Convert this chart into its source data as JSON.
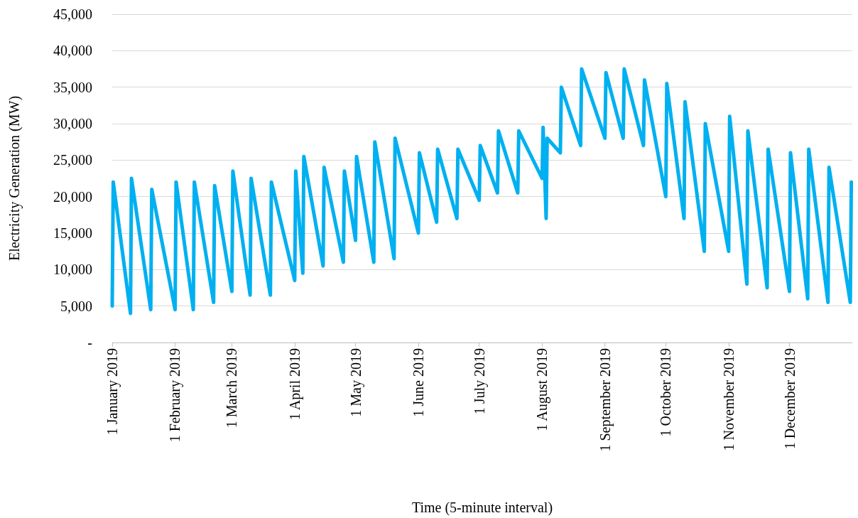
{
  "chart_data": {
    "type": "line",
    "xlabel": "Time (5-minute interval)",
    "ylabel": "Electricity Generation (MW)",
    "xlim": [
      "2019-01-01",
      "2019-12-31T23:55"
    ],
    "xticks": [
      {
        "value": "2019-01-01",
        "label": "1 January 2019"
      },
      {
        "value": "2019-02-01",
        "label": "1 February 2019"
      },
      {
        "value": "2019-03-01",
        "label": "1 March 2019"
      },
      {
        "value": "2019-04-01",
        "label": "1 April 2019"
      },
      {
        "value": "2019-05-01",
        "label": "1 May 2019"
      },
      {
        "value": "2019-06-01",
        "label": "1 June 2019"
      },
      {
        "value": "2019-07-01",
        "label": "1 July 2019"
      },
      {
        "value": "2019-08-01",
        "label": "1 August 2019"
      },
      {
        "value": "2019-09-01",
        "label": "1 September 2019"
      },
      {
        "value": "2019-10-01",
        "label": "1 October 2019"
      },
      {
        "value": "2019-11-01",
        "label": "1 November 2019"
      },
      {
        "value": "2019-12-01",
        "label": "1 December 2019"
      }
    ],
    "ylim": [
      0,
      45000
    ],
    "yticks": [
      {
        "value": 0,
        "label": "-"
      },
      {
        "value": 5000,
        "label": "5,000"
      },
      {
        "value": 10000,
        "label": "10,000"
      },
      {
        "value": 15000,
        "label": "15,000"
      },
      {
        "value": 20000,
        "label": "20,000"
      },
      {
        "value": 25000,
        "label": "25,000"
      },
      {
        "value": 30000,
        "label": "30,000"
      },
      {
        "value": 35000,
        "label": "35,000"
      },
      {
        "value": 40000,
        "label": "40,000"
      },
      {
        "value": 45000,
        "label": "45,000"
      }
    ],
    "grid": "y",
    "marker": "none",
    "line_style": "solid",
    "series": [
      {
        "color": "#00b0f0",
        "x": [
          "2019-01-01T00:00",
          "2019-01-01T12:00",
          "2019-01-10T00:00",
          "2019-01-10T12:00",
          "2019-01-20T00:00",
          "2019-01-20T12:00",
          "2019-02-01T00:00",
          "2019-02-01T12:00",
          "2019-02-10T00:00",
          "2019-02-10T12:00",
          "2019-02-20T00:00",
          "2019-02-20T12:00",
          "2019-03-01T00:00",
          "2019-03-01T12:00",
          "2019-03-10T00:00",
          "2019-03-10T12:00",
          "2019-03-20T00:00",
          "2019-03-20T12:00",
          "2019-04-01T00:00",
          "2019-04-01T12:00",
          "2019-04-05T00:00",
          "2019-04-05T12:00",
          "2019-04-15T00:00",
          "2019-04-15T12:00",
          "2019-04-25T00:00",
          "2019-04-25T12:00",
          "2019-05-01T00:00",
          "2019-05-01T12:00",
          "2019-05-10T00:00",
          "2019-05-10T12:00",
          "2019-05-20T00:00",
          "2019-05-20T12:00",
          "2019-06-01T00:00",
          "2019-06-01T12:00",
          "2019-06-10T00:00",
          "2019-06-10T12:00",
          "2019-06-20T00:00",
          "2019-06-20T12:00",
          "2019-07-01T00:00",
          "2019-07-01T12:00",
          "2019-07-10T00:00",
          "2019-07-10T12:00",
          "2019-07-20T00:00",
          "2019-07-20T12:00",
          "2019-08-01T00:00",
          "2019-08-01T12:00",
          "2019-08-03T00:00",
          "2019-08-03T12:00",
          "2019-08-10T00:00",
          "2019-08-10T12:00",
          "2019-08-20T00:00",
          "2019-08-20T12:00",
          "2019-09-01T00:00",
          "2019-09-01T12:00",
          "2019-09-10T00:00",
          "2019-09-10T12:00",
          "2019-09-20T00:00",
          "2019-09-20T12:00",
          "2019-10-01T00:00",
          "2019-10-01T12:00",
          "2019-10-10T00:00",
          "2019-10-10T12:00",
          "2019-10-20T00:00",
          "2019-10-20T12:00",
          "2019-11-01T00:00",
          "2019-11-01T12:00",
          "2019-11-10T00:00",
          "2019-11-10T12:00",
          "2019-11-20T00:00",
          "2019-11-20T12:00",
          "2019-12-01T00:00",
          "2019-12-01T12:00",
          "2019-12-10T00:00",
          "2019-12-10T12:00",
          "2019-12-20T00:00",
          "2019-12-20T12:00",
          "2019-12-31T00:00",
          "2019-12-31T12:00"
        ],
        "values": [
          5000,
          22000,
          4000,
          22500,
          4500,
          21000,
          4500,
          22000,
          4500,
          22000,
          5500,
          21500,
          7000,
          23500,
          6500,
          22500,
          6500,
          22000,
          8500,
          23500,
          9500,
          25500,
          10500,
          24000,
          11000,
          23500,
          14000,
          25500,
          11000,
          27500,
          11500,
          28000,
          15000,
          26000,
          16500,
          26500,
          17000,
          26500,
          19500,
          27000,
          20500,
          29000,
          20500,
          29000,
          22500,
          29500,
          17000,
          28000,
          26000,
          35000,
          27000,
          37500,
          28000,
          37000,
          28000,
          37500,
          27000,
          36000,
          20000,
          35500,
          17000,
          33000,
          12500,
          30000,
          12500,
          31000,
          8000,
          29000,
          7500,
          26500,
          7000,
          26000,
          6000,
          26500,
          5500,
          24000,
          5500,
          22000
        ]
      }
    ]
  }
}
